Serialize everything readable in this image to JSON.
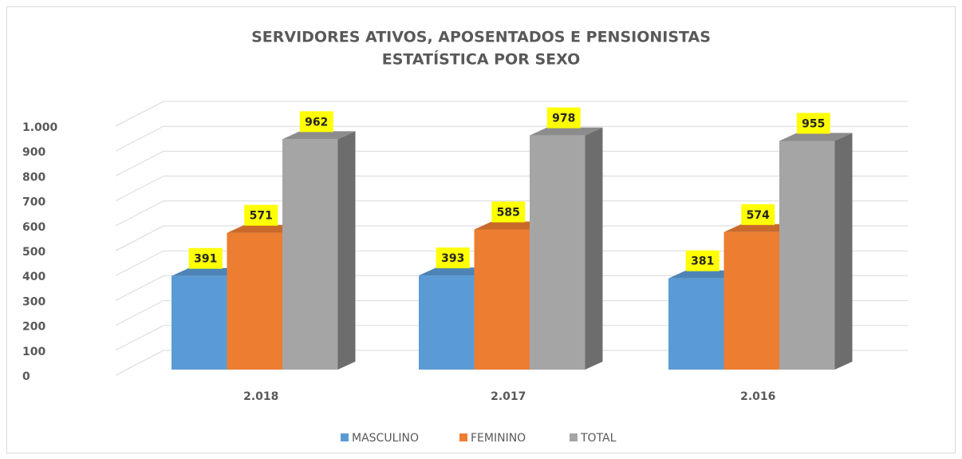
{
  "chart_data": {
    "type": "bar3d",
    "title": [
      "SERVIDORES ATIVOS, APOSENTADOS E PENSIONISTAS",
      "ESTATÍSTICA POR SEXO"
    ],
    "categories": [
      "2.018",
      "2.017",
      "2.016"
    ],
    "series": [
      {
        "name": "MASCULINO",
        "color": "#5b9bd5",
        "values": [
          391,
          393,
          381
        ]
      },
      {
        "name": "FEMININO",
        "color": "#ed7d31",
        "values": [
          571,
          585,
          574
        ]
      },
      {
        "name": "TOTAL",
        "color": "#a5a5a5",
        "values": [
          962,
          978,
          955
        ]
      }
    ],
    "ylim": [
      0,
      1000
    ],
    "yticks": [
      0,
      100,
      200,
      300,
      400,
      500,
      600,
      700,
      800,
      900,
      {
        "value": 1000,
        "label": "1.000"
      }
    ],
    "grid": true,
    "legend": "bottom"
  }
}
